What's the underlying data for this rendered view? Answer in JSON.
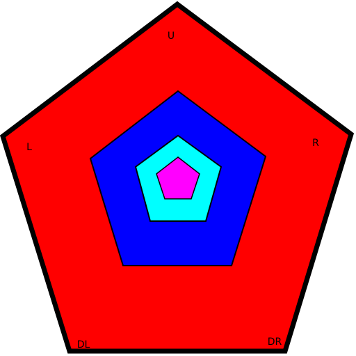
{
  "diagram": {
    "shape": "nested-pentagons",
    "layers": [
      {
        "name": "outer",
        "fill": "#ff0000",
        "stroke": "#000000"
      },
      {
        "name": "second",
        "fill": "#0000ff",
        "stroke": "#000000"
      },
      {
        "name": "third",
        "fill": "#00ffff",
        "stroke": "#000000"
      },
      {
        "name": "center",
        "fill": "#ff00ff",
        "stroke": "#000000"
      }
    ],
    "labels": {
      "up": "U",
      "right": "R",
      "down_right": "DR",
      "down_left": "DL",
      "left": "L"
    }
  }
}
